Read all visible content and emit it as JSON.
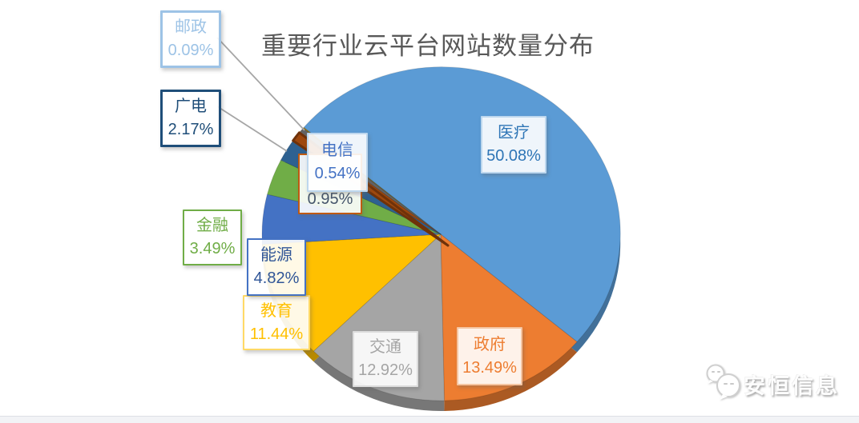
{
  "page": {
    "title": "重要行业云平台网站数量分布",
    "watermark_text": "安恒信息"
  },
  "chart_data": {
    "type": "pie",
    "title": "重要行业云平台网站数量分布",
    "style": "3d-pie-with-callout-labels",
    "start_angle_deg": 140,
    "direction": "clockwise",
    "value_unit": "percent",
    "slices": [
      {
        "label": "医疗",
        "value": 50.08,
        "pct_label": "50.08%",
        "color": "#5B9BD5",
        "label_text_color": "#2E75B6",
        "label_border_color": "#BDD7EE"
      },
      {
        "label": "政府",
        "value": 13.49,
        "pct_label": "13.49%",
        "color": "#ED7D31",
        "label_text_color": "#ED7D31",
        "label_border_color": "#F5C5A2"
      },
      {
        "label": "交通",
        "value": 12.92,
        "pct_label": "12.92%",
        "color": "#A5A5A5",
        "label_text_color": "#A5A5A5",
        "label_border_color": "#DCDCDC"
      },
      {
        "label": "教育",
        "value": 11.44,
        "pct_label": "11.44%",
        "color": "#FFC000",
        "label_text_color": "#FFC000",
        "label_border_color": "#FFD966"
      },
      {
        "label": "能源",
        "value": 4.82,
        "pct_label": "4.82%",
        "color": "#4472C4",
        "label_text_color": "#2F5597",
        "label_border_color": "#4472C4"
      },
      {
        "label": "金融",
        "value": 3.49,
        "pct_label": "3.49%",
        "color": "#70AD47",
        "label_text_color": "#70AD47",
        "label_border_color": "#70AD47"
      },
      {
        "label": "广电",
        "value": 2.17,
        "pct_label": "2.17%",
        "color": "#2E6191",
        "label_text_color": "#1F4E79",
        "label_border_color": "#1F4E79"
      },
      {
        "label": "",
        "value": 0.95,
        "pct_label": "0.95%",
        "color": "#9E480E",
        "label_text_color": "#44546A",
        "label_border_color": "#C05A11"
      },
      {
        "label": "电信",
        "value": 0.54,
        "pct_label": "0.54%",
        "color": "#636363",
        "label_text_color": "#4472C4",
        "label_border_color": "#BDD7EE"
      },
      {
        "label": "邮政",
        "value": 0.09,
        "pct_label": "0.09%",
        "color": "#997300",
        "label_text_color": "#9DC3E6",
        "label_border_color": "#9DC3E6"
      }
    ]
  }
}
